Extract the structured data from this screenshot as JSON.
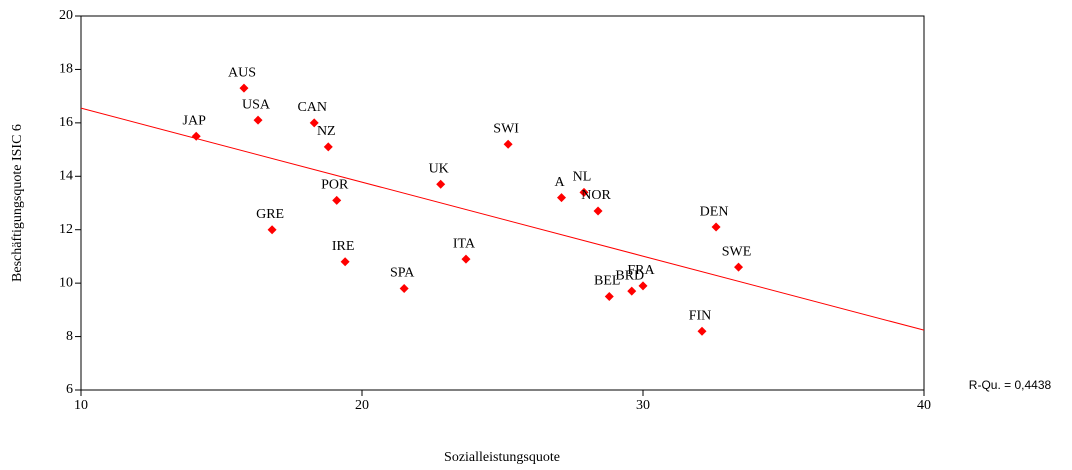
{
  "chart_data": {
    "type": "scatter",
    "x_label": "Sozialleistungsquote",
    "y_label": "Beschäftigungsquote ISIC 6",
    "annotation": "R-Qu. = 0,4438",
    "color": "#ff0000",
    "labels": [
      "JAP",
      "AUS",
      "USA",
      "CAN",
      "NZ",
      "POR",
      "GRE",
      "IRE",
      "SPA",
      "UK",
      "ITA",
      "SWI",
      "A",
      "NL",
      "NOR",
      "BEL",
      "BRD",
      "FRA",
      "FIN",
      "DEN",
      "SWE"
    ],
    "x": [
      14.1,
      15.8,
      16.3,
      18.3,
      18.8,
      19.1,
      16.8,
      19.4,
      21.5,
      22.8,
      23.7,
      25.2,
      27.1,
      27.9,
      28.4,
      28.8,
      29.6,
      30.0,
      32.1,
      32.6,
      33.4
    ],
    "values": [
      15.5,
      17.3,
      16.1,
      16.0,
      15.1,
      13.1,
      12.0,
      10.8,
      9.8,
      13.7,
      10.9,
      15.2,
      13.2,
      13.4,
      12.7,
      9.5,
      9.7,
      9.9,
      8.2,
      12.1,
      10.6
    ],
    "fit": {
      "x": [
        10,
        40
      ],
      "values": [
        16.55,
        8.24
      ]
    },
    "xlim": [
      10,
      40
    ],
    "xticks": [
      10,
      20,
      30,
      40
    ],
    "ylim": [
      6,
      20
    ],
    "yticks": [
      6,
      8,
      10,
      12,
      14,
      16,
      18,
      20
    ]
  }
}
